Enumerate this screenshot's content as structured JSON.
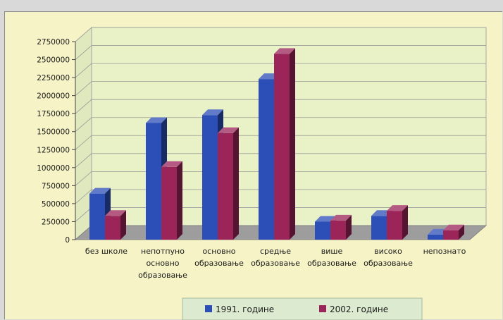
{
  "chart_data": {
    "type": "bar",
    "title": "",
    "xlabel": "",
    "ylabel": "",
    "categories": [
      [
        "без школе"
      ],
      [
        "непотпуно",
        "основно",
        "образовање"
      ],
      [
        "основно",
        "образовање"
      ],
      [
        "средње",
        "образовање"
      ],
      [
        "више",
        "образовање"
      ],
      [
        "високо",
        "образовање"
      ],
      [
        "непознато"
      ]
    ],
    "series": [
      {
        "name": "1991. године",
        "color": "#2c4fb7",
        "values": [
          640000,
          1620000,
          1730000,
          2230000,
          250000,
          330000,
          70000
        ]
      },
      {
        "name": "2002. године",
        "color": "#9b2459",
        "values": [
          330000,
          1010000,
          1480000,
          2580000,
          265000,
          400000,
          130000
        ]
      }
    ],
    "ylim": [
      0,
      2750000
    ],
    "yticks": [
      0,
      250000,
      500000,
      750000,
      1000000,
      1250000,
      1500000,
      1750000,
      2000000,
      2250000,
      2500000,
      2750000
    ],
    "ytick_labels": [
      "0",
      "250000",
      "500000",
      "750000",
      "1000000",
      "1250000",
      "1500000",
      "1750000",
      "2000000",
      "2250000",
      "2500000",
      "2750000"
    ],
    "grid": true,
    "legend_position": "bottom"
  }
}
